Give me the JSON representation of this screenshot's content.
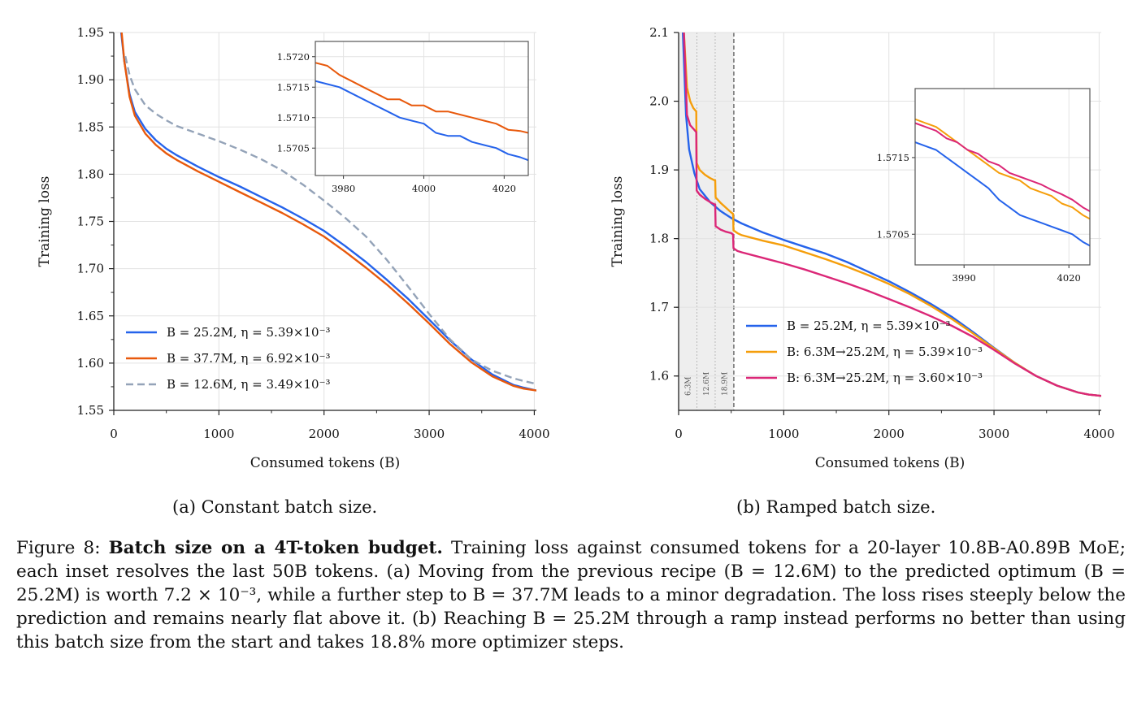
{
  "chart_data": [
    {
      "type": "line",
      "subcaption": "(a) Constant batch size.",
      "xlabel": "Consumed tokens (B)",
      "ylabel": "Training loss",
      "xlim": [
        0,
        4020
      ],
      "ylim": [
        1.55,
        1.95
      ],
      "xticks": [
        "0",
        "1000",
        "2000",
        "3000",
        "4000"
      ],
      "yticks": [
        "1.55",
        "1.60",
        "1.65",
        "1.70",
        "1.75",
        "1.80",
        "1.85",
        "1.90",
        "1.95"
      ],
      "grid": true,
      "legend_position": "lower-left",
      "series": [
        {
          "name": "B = 25.2M,  η = 5.39×10⁻³",
          "color": "#2563eb",
          "style": "solid",
          "x": [
            70,
            100,
            150,
            200,
            300,
            400,
            500,
            600,
            800,
            1000,
            1200,
            1400,
            1600,
            1800,
            2000,
            2200,
            2400,
            2600,
            2800,
            3000,
            3200,
            3400,
            3600,
            3800,
            3900,
            4020
          ],
          "y": [
            1.95,
            1.92,
            1.885,
            1.866,
            1.848,
            1.836,
            1.827,
            1.82,
            1.808,
            1.797,
            1.787,
            1.776,
            1.765,
            1.753,
            1.74,
            1.724,
            1.707,
            1.688,
            1.668,
            1.646,
            1.624,
            1.604,
            1.588,
            1.577,
            1.574,
            1.571
          ]
        },
        {
          "name": "B = 37.7M,  η = 6.92×10⁻³",
          "color": "#e8590c",
          "style": "solid",
          "x": [
            75,
            100,
            150,
            200,
            300,
            400,
            500,
            600,
            800,
            1000,
            1200,
            1400,
            1600,
            1800,
            2000,
            2200,
            2400,
            2600,
            2800,
            3000,
            3200,
            3400,
            3600,
            3800,
            3900,
            4020
          ],
          "y": [
            1.95,
            1.92,
            1.882,
            1.862,
            1.843,
            1.831,
            1.822,
            1.815,
            1.803,
            1.792,
            1.781,
            1.77,
            1.759,
            1.747,
            1.734,
            1.718,
            1.701,
            1.683,
            1.663,
            1.642,
            1.62,
            1.601,
            1.586,
            1.576,
            1.573,
            1.571
          ]
        },
        {
          "name": "B = 12.6M,  η = 3.49×10⁻³",
          "color": "#94a3b8",
          "style": "dashed",
          "x": [
            110,
            150,
            200,
            300,
            400,
            500,
            600,
            800,
            1000,
            1200,
            1400,
            1600,
            1800,
            2000,
            2200,
            2400,
            2600,
            2800,
            3000,
            3200,
            3400,
            3600,
            3800,
            3900,
            4020
          ],
          "y": [
            1.925,
            1.905,
            1.89,
            1.873,
            1.864,
            1.857,
            1.851,
            1.843,
            1.835,
            1.826,
            1.816,
            1.804,
            1.789,
            1.772,
            1.754,
            1.734,
            1.709,
            1.681,
            1.652,
            1.625,
            1.604,
            1.592,
            1.584,
            1.581,
            1.578
          ]
        }
      ],
      "inset": {
        "xlim": [
          3973,
          4026
        ],
        "ylim": [
          1.57005,
          1.57225
        ],
        "xticks": [
          "3980",
          "4000",
          "4020"
        ],
        "yticks": [
          "1.5705",
          "1.5710",
          "1.5715",
          "1.5720"
        ],
        "series": [
          {
            "color": "#e8590c",
            "x": [
              3973,
              3976,
              3979,
              3982,
              3985,
              3988,
              3991,
              3994,
              3997,
              4000,
              4003,
              4006,
              4009,
              4012,
              4015,
              4018,
              4021,
              4024,
              4026
            ],
            "y": [
              1.5719,
              1.57185,
              1.5717,
              1.5716,
              1.5715,
              1.5714,
              1.5713,
              1.5713,
              1.5712,
              1.5712,
              1.5711,
              1.5711,
              1.57105,
              1.571,
              1.57095,
              1.5709,
              1.5708,
              1.57078,
              1.57075
            ]
          },
          {
            "color": "#2563eb",
            "x": [
              3973,
              3976,
              3979,
              3982,
              3985,
              3988,
              3991,
              3994,
              3997,
              4000,
              4003,
              4006,
              4009,
              4012,
              4015,
              4018,
              4021,
              4024,
              4026
            ],
            "y": [
              1.5716,
              1.57155,
              1.5715,
              1.5714,
              1.5713,
              1.5712,
              1.5711,
              1.571,
              1.57095,
              1.5709,
              1.57075,
              1.5707,
              1.5707,
              1.5706,
              1.57055,
              1.5705,
              1.5704,
              1.57035,
              1.5703
            ]
          }
        ]
      }
    },
    {
      "type": "line",
      "subcaption": "(b) Ramped batch size.",
      "xlabel": "Consumed tokens (B)",
      "ylabel": "Training loss",
      "xlim": [
        0,
        4020
      ],
      "ylim": [
        1.55,
        2.1
      ],
      "xticks": [
        "0",
        "1000",
        "2000",
        "3000",
        "4000"
      ],
      "yticks": [
        "1.6",
        "1.7",
        "1.8",
        "1.9",
        "2.0",
        "2.1"
      ],
      "grid": true,
      "legend_position": "lower-left",
      "phase_bands": [
        {
          "label": "6.3M",
          "x0": 0,
          "x1": 175
        },
        {
          "label": "12.6M",
          "x0": 175,
          "x1": 350
        },
        {
          "label": "18.9M",
          "x0": 350,
          "x1": 525
        }
      ],
      "series": [
        {
          "name": "B = 25.2M,  η = 5.39×10⁻³",
          "color": "#2563eb",
          "x": [
            40,
            70,
            100,
            150,
            200,
            300,
            400,
            500,
            600,
            800,
            1000,
            1200,
            1400,
            1600,
            1800,
            2000,
            2200,
            2400,
            2600,
            2800,
            3000,
            3200,
            3400,
            3600,
            3800,
            3900,
            4020
          ],
          "y": [
            2.1,
            1.98,
            1.93,
            1.895,
            1.872,
            1.853,
            1.84,
            1.83,
            1.822,
            1.809,
            1.798,
            1.788,
            1.778,
            1.766,
            1.752,
            1.738,
            1.722,
            1.705,
            1.686,
            1.664,
            1.641,
            1.619,
            1.6,
            1.586,
            1.576,
            1.573,
            1.571
          ]
        },
        {
          "name": "B: 6.3M→25.2M,  η = 5.39×10⁻³",
          "color": "#f59e0b",
          "x": [
            50,
            80,
            110,
            140,
            168,
            172,
            200,
            250,
            300,
            340,
            348,
            352,
            400,
            450,
            500,
            518,
            522,
            560,
            600,
            800,
            1000,
            1200,
            1400,
            1600,
            1800,
            2000,
            2200,
            2400,
            2600,
            2800,
            3000,
            3200,
            3400,
            3600,
            3800,
            3900,
            4020
          ],
          "y": [
            2.1,
            2.02,
            2.0,
            1.99,
            1.985,
            1.91,
            1.9,
            1.893,
            1.888,
            1.885,
            1.885,
            1.86,
            1.852,
            1.845,
            1.838,
            1.836,
            1.812,
            1.808,
            1.805,
            1.797,
            1.79,
            1.78,
            1.77,
            1.759,
            1.747,
            1.734,
            1.719,
            1.702,
            1.683,
            1.662,
            1.64,
            1.619,
            1.6,
            1.586,
            1.576,
            1.573,
            1.571
          ]
        },
        {
          "name": "B: 6.3M→25.2M,  η = 3.60×10⁻³",
          "color": "#db2777",
          "x": [
            50,
            80,
            110,
            140,
            168,
            172,
            200,
            250,
            300,
            340,
            348,
            352,
            400,
            450,
            500,
            518,
            522,
            560,
            600,
            800,
            1000,
            1200,
            1400,
            1600,
            1800,
            2000,
            2200,
            2400,
            2600,
            2800,
            3000,
            3200,
            3400,
            3600,
            3800,
            3900,
            4020
          ],
          "y": [
            2.1,
            1.98,
            1.965,
            1.96,
            1.955,
            1.87,
            1.864,
            1.858,
            1.853,
            1.85,
            1.85,
            1.818,
            1.813,
            1.81,
            1.808,
            1.806,
            1.786,
            1.782,
            1.78,
            1.772,
            1.764,
            1.755,
            1.745,
            1.735,
            1.724,
            1.712,
            1.7,
            1.687,
            1.673,
            1.657,
            1.638,
            1.618,
            1.6,
            1.586,
            1.576,
            1.573,
            1.571
          ]
        }
      ],
      "inset": {
        "xlim": [
          3976,
          4026
        ],
        "ylim": [
          1.5701,
          1.5724
        ],
        "xticks": [
          "3990",
          "4020"
        ],
        "yticks": [
          "1.5705",
          "1.5715"
        ],
        "series": [
          {
            "color": "#f59e0b",
            "x": [
              3976,
              3979,
              3982,
              3985,
              3988,
              3991,
              3994,
              3997,
              4000,
              4003,
              4006,
              4009,
              4012,
              4015,
              4018,
              4021,
              4024,
              4026
            ],
            "y": [
              1.572,
              1.57195,
              1.5719,
              1.5718,
              1.5717,
              1.5716,
              1.5715,
              1.5714,
              1.5713,
              1.57125,
              1.5712,
              1.5711,
              1.57105,
              1.571,
              1.5709,
              1.57085,
              1.57075,
              1.5707
            ]
          },
          {
            "color": "#db2777",
            "x": [
              3976,
              3979,
              3982,
              3985,
              3988,
              3991,
              3994,
              3997,
              4000,
              4003,
              4006,
              4009,
              4012,
              4015,
              4018,
              4021,
              4024,
              4026
            ],
            "y": [
              1.57195,
              1.5719,
              1.57185,
              1.57175,
              1.5717,
              1.5716,
              1.57155,
              1.57145,
              1.5714,
              1.5713,
              1.57125,
              1.5712,
              1.57115,
              1.57108,
              1.57102,
              1.57095,
              1.57085,
              1.5708
            ]
          },
          {
            "color": "#2563eb",
            "x": [
              3976,
              3979,
              3982,
              3985,
              3988,
              3991,
              3994,
              3997,
              4000,
              4003,
              4006,
              4009,
              4012,
              4015,
              4018,
              4021,
              4024,
              4026
            ],
            "y": [
              1.5717,
              1.57165,
              1.5716,
              1.5715,
              1.5714,
              1.5713,
              1.5712,
              1.5711,
              1.57095,
              1.57085,
              1.57075,
              1.5707,
              1.57065,
              1.5706,
              1.57055,
              1.5705,
              1.5704,
              1.57035
            ]
          }
        ]
      }
    }
  ],
  "caption": {
    "label": "Figure 8:",
    "bold": "Batch size on a 4T-token budget.",
    "text": "Training loss against consumed tokens for a 20-layer 10.8B-A0.89B MoE; each inset resolves the last 50B tokens. (a) Moving from the previous recipe (B = 12.6M) to the predicted optimum (B = 25.2M) is worth 7.2 × 10⁻³, while a further step to B = 37.7M leads to a minor degradation. The loss rises steeply below the prediction and remains nearly flat above it. (b) Reaching B = 25.2M through a ramp instead performs no better than using this batch size from the start and takes 18.8% more optimizer steps."
  }
}
